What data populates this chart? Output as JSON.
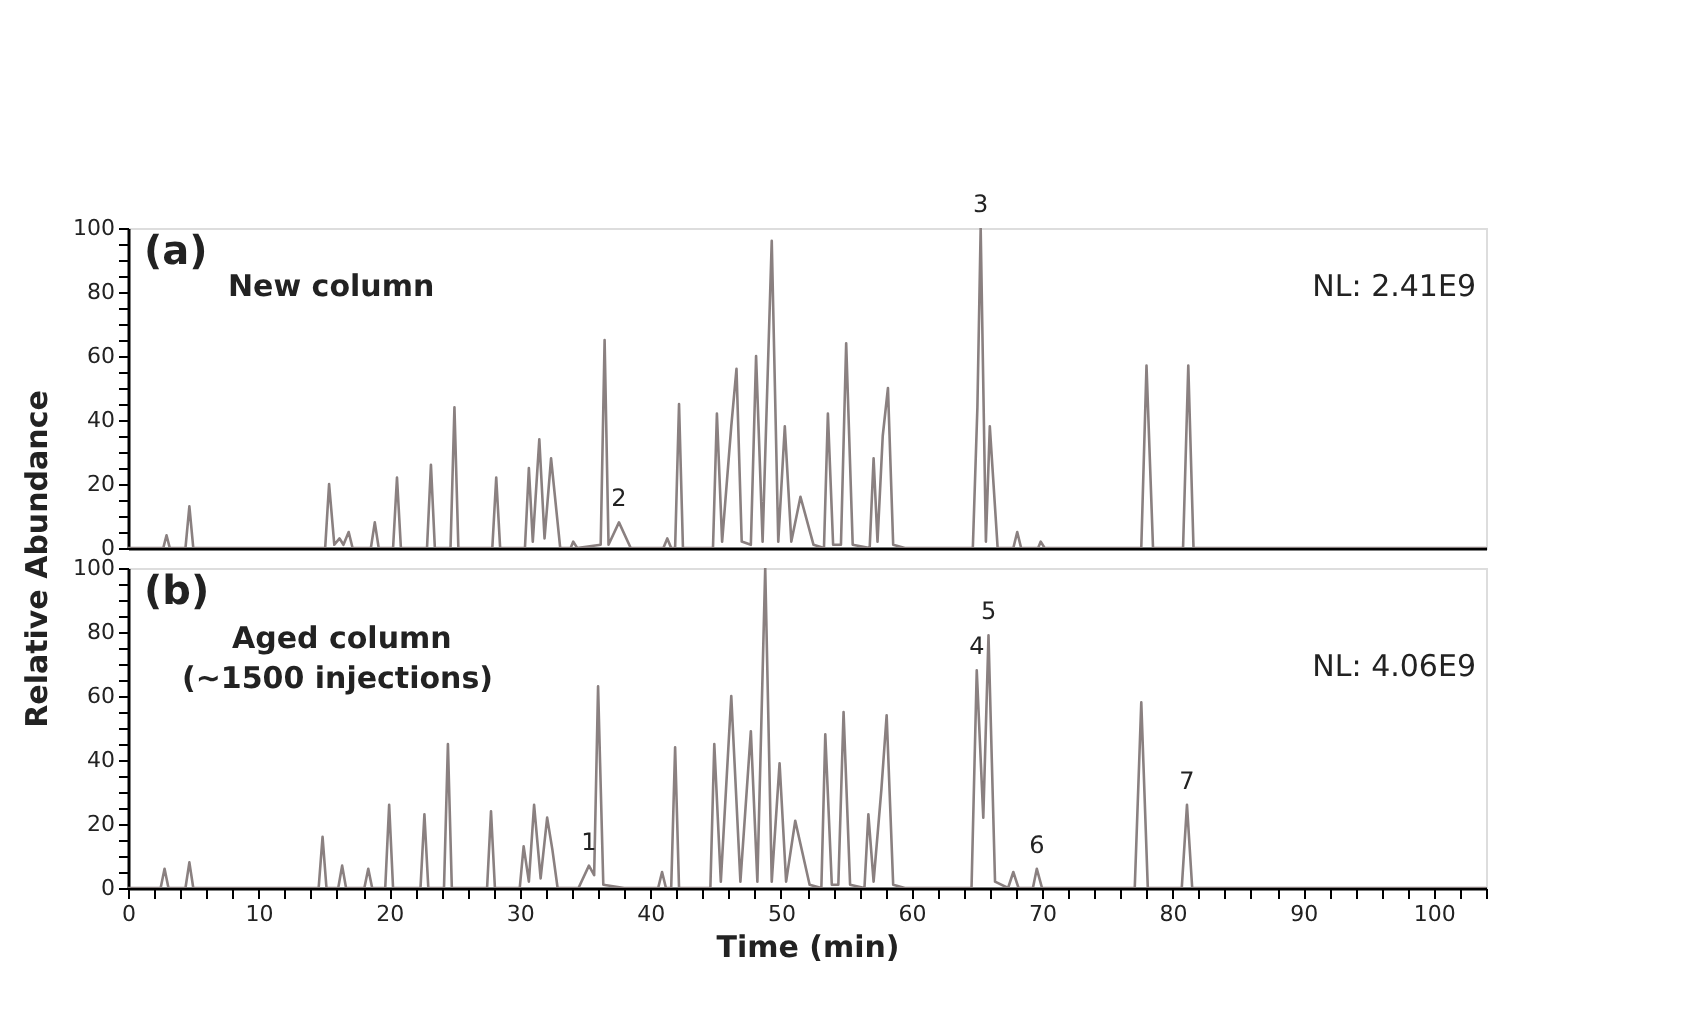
{
  "chart_data": [
    {
      "type": "line",
      "ylabel": "Relative Abundance",
      "xlim": [
        0,
        104
      ],
      "ylim": [
        0,
        100
      ],
      "tick_labels": "y",
      "grid": false,
      "yticks": [
        0,
        {
          "value": 5,
          "label": null
        },
        {
          "value": 10,
          "label": null
        },
        {
          "value": 15,
          "label": null
        },
        20,
        {
          "value": 25,
          "label": null
        },
        {
          "value": 30,
          "label": null
        },
        {
          "value": 35,
          "label": null
        },
        40,
        {
          "value": 45,
          "label": null
        },
        {
          "value": 50,
          "label": null
        },
        {
          "value": 55,
          "label": null
        },
        60,
        {
          "value": 65,
          "label": null
        },
        {
          "value": 70,
          "label": null
        },
        {
          "value": 75,
          "label": null
        },
        80,
        {
          "value": 85,
          "label": null
        },
        {
          "value": 90,
          "label": null
        },
        {
          "value": 95,
          "label": null
        },
        100
      ],
      "series": [
        {
          "color": "#8a8080",
          "x": [
            0,
            2.7,
            2.95,
            3.2,
            4.4,
            4.7,
            5,
            15.1,
            15.4,
            15.8,
            16.2,
            16.5,
            16.9,
            17.2,
            18.6,
            18.9,
            19.2,
            20.3,
            20.6,
            20.9,
            22.9,
            23.2,
            23.5,
            24.7,
            25.0,
            25.3,
            27.9,
            28.2,
            28.5,
            30.4,
            30.7,
            31.0,
            31.5,
            31.9,
            32.4,
            32.8,
            33.1,
            33.9,
            34.1,
            34.4,
            36.2,
            36.5,
            36.8,
            37.6,
            38.5,
            41.0,
            41.3,
            41.6,
            41.9,
            42.2,
            42.5,
            44.8,
            45.1,
            45.5,
            46.2,
            46.6,
            47.0,
            47.7,
            48.1,
            48.6,
            49.3,
            49.8,
            50.3,
            50.8,
            51.5,
            52.5,
            53.3,
            53.6,
            54.0,
            54.6,
            55.0,
            55.5,
            56.8,
            57.1,
            57.4,
            57.8,
            58.2,
            58.6,
            59.5,
            64.7,
            65.05,
            65.3,
            65.7,
            66.0,
            66.6,
            67.8,
            68.1,
            68.4,
            69.7,
            69.9,
            70.2,
            77.6,
            78.0,
            78.5,
            80.8,
            81.2,
            81.6,
            104
          ],
          "values": [
            0,
            0,
            4,
            0,
            0,
            13,
            0,
            0,
            20,
            1,
            3,
            1,
            5,
            0,
            0,
            8,
            0,
            0,
            22,
            0,
            0,
            26,
            0,
            0,
            44,
            0,
            0,
            22,
            0,
            0,
            25,
            2,
            34,
            3,
            28,
            12,
            0,
            0,
            2,
            0,
            1,
            65,
            1,
            8,
            0,
            0,
            3,
            0,
            0,
            45,
            0,
            0,
            42,
            2,
            38,
            56,
            2,
            1,
            60,
            2,
            96,
            2,
            38,
            2,
            16,
            1,
            0,
            42,
            1,
            1,
            64,
            1,
            0,
            28,
            2,
            35,
            50,
            1,
            0,
            0,
            44,
            100,
            2,
            38,
            0,
            0,
            5,
            0,
            0,
            2,
            0,
            0,
            57,
            0,
            0,
            57,
            0,
            0
          ]
        }
      ],
      "annotations": [
        "(a)",
        "New column",
        {
          "text": "2",
          "x": 37.6,
          "y": 8
        },
        {
          "text": "3",
          "x": 65.3,
          "y": 100
        },
        "NL: 2.41E9"
      ]
    },
    {
      "type": "line",
      "xlabel": "Time (min)",
      "xlim": [
        0,
        104
      ],
      "ylim": [
        0,
        100
      ],
      "grid": false,
      "xticks": [
        0,
        {
          "value": 2,
          "label": null
        },
        {
          "value": 4,
          "label": null
        },
        {
          "value": 6,
          "label": null
        },
        {
          "value": 8,
          "label": null
        },
        10,
        {
          "value": 12,
          "label": null
        },
        {
          "value": 14,
          "label": null
        },
        {
          "value": 16,
          "label": null
        },
        {
          "value": 18,
          "label": null
        },
        20,
        {
          "value": 22,
          "label": null
        },
        {
          "value": 24,
          "label": null
        },
        {
          "value": 26,
          "label": null
        },
        {
          "value": 28,
          "label": null
        },
        30,
        {
          "value": 32,
          "label": null
        },
        {
          "value": 34,
          "label": null
        },
        {
          "value": 36,
          "label": null
        },
        {
          "value": 38,
          "label": null
        },
        40,
        {
          "value": 42,
          "label": null
        },
        {
          "value": 44,
          "label": null
        },
        {
          "value": 46,
          "label": null
        },
        {
          "value": 48,
          "label": null
        },
        50,
        {
          "value": 52,
          "label": null
        },
        {
          "value": 54,
          "label": null
        },
        {
          "value": 56,
          "label": null
        },
        {
          "value": 58,
          "label": null
        },
        60,
        {
          "value": 62,
          "label": null
        },
        {
          "value": 64,
          "label": null
        },
        {
          "value": 66,
          "label": null
        },
        {
          "value": 68,
          "label": null
        },
        70,
        {
          "value": 72,
          "label": null
        },
        {
          "value": 74,
          "label": null
        },
        {
          "value": 76,
          "label": null
        },
        {
          "value": 78,
          "label": null
        },
        80,
        {
          "value": 82,
          "label": null
        },
        {
          "value": 84,
          "label": null
        },
        {
          "value": 86,
          "label": null
        },
        {
          "value": 88,
          "label": null
        },
        90,
        {
          "value": 92,
          "label": null
        },
        {
          "value": 94,
          "label": null
        },
        {
          "value": 96,
          "label": null
        },
        {
          "value": 98,
          "label": null
        },
        100,
        {
          "value": 102,
          "label": null
        },
        {
          "value": 104,
          "label": null
        }
      ],
      "yticks": [
        0,
        {
          "value": 5,
          "label": null
        },
        {
          "value": 10,
          "label": null
        },
        {
          "value": 15,
          "label": null
        },
        20,
        {
          "value": 25,
          "label": null
        },
        {
          "value": 30,
          "label": null
        },
        {
          "value": 35,
          "label": null
        },
        40,
        {
          "value": 45,
          "label": null
        },
        {
          "value": 50,
          "label": null
        },
        {
          "value": 55,
          "label": null
        },
        60,
        {
          "value": 65,
          "label": null
        },
        {
          "value": 70,
          "label": null
        },
        {
          "value": 75,
          "label": null
        },
        80,
        {
          "value": 85,
          "label": null
        },
        {
          "value": 90,
          "label": null
        },
        {
          "value": 95,
          "label": null
        },
        100
      ],
      "series": [
        {
          "color": "#8a8080",
          "x": [
            0,
            2.5,
            2.8,
            3.1,
            4.4,
            4.7,
            5.0,
            14.6,
            14.9,
            15.2,
            16.1,
            16.4,
            16.7,
            18.1,
            18.4,
            18.7,
            19.7,
            20.0,
            20.3,
            22.4,
            22.7,
            23.0,
            24.2,
            24.5,
            24.8,
            27.5,
            27.8,
            28.1,
            30.0,
            30.3,
            30.7,
            31.1,
            31.6,
            32.1,
            32.5,
            32.9,
            34.5,
            35.3,
            35.7,
            36.0,
            36.4,
            38.0,
            40.6,
            40.9,
            41.2,
            41.6,
            41.9,
            42.2,
            44.6,
            44.9,
            45.4,
            46.2,
            46.9,
            47.7,
            48.2,
            48.8,
            49.3,
            49.9,
            50.4,
            51.1,
            52.2,
            53.1,
            53.4,
            53.9,
            54.4,
            54.8,
            55.3,
            56.4,
            56.7,
            57.1,
            57.7,
            58.1,
            58.6,
            59.5,
            64.6,
            65.0,
            65.5,
            65.9,
            66.4,
            67.4,
            67.8,
            68.2,
            69.3,
            69.6,
            70.0,
            77.1,
            77.6,
            78.1,
            80.7,
            81.1,
            81.5,
            104
          ],
          "values": [
            0,
            0,
            6,
            0,
            0,
            8,
            0,
            0,
            16,
            0,
            0,
            7,
            0,
            0,
            6,
            0,
            0,
            26,
            0,
            0,
            23,
            0,
            0,
            45,
            0,
            0,
            24,
            0,
            0,
            13,
            2,
            26,
            3,
            22,
            12,
            0,
            0,
            7,
            4,
            63,
            1,
            0,
            0,
            5,
            0,
            0,
            44,
            0,
            0,
            45,
            2,
            60,
            2,
            49,
            2,
            100,
            2,
            39,
            2,
            21,
            1,
            0,
            48,
            1,
            1,
            55,
            1,
            0,
            23,
            2,
            31,
            54,
            1,
            0,
            0,
            68,
            22,
            79,
            2,
            0,
            5,
            0,
            0,
            6,
            0,
            0,
            58,
            0,
            0,
            26,
            0,
            0
          ]
        }
      ],
      "annotations": [
        "(b)",
        "Aged column",
        "(~1500 injections)",
        {
          "text": "1",
          "x": 35.3,
          "y": 7
        },
        {
          "text": "4",
          "x": 65.0,
          "y": 68
        },
        {
          "text": "5",
          "x": 65.9,
          "y": 79
        },
        {
          "text": "6",
          "x": 69.6,
          "y": 6
        },
        {
          "text": "7",
          "x": 81.1,
          "y": 26
        },
        "NL: 4.06E9"
      ]
    }
  ]
}
